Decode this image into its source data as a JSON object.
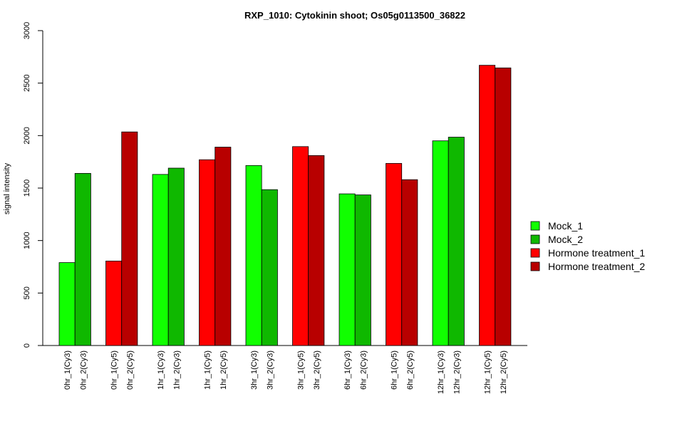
{
  "chart_data": {
    "type": "bar",
    "title": "RXP_1010: Cytokinin shoot; Os05g0113500_36822",
    "xlabel": "",
    "ylabel": "signal intensity",
    "ylim": [
      0,
      3000
    ],
    "yticks": [
      0,
      500,
      1000,
      1500,
      2000,
      2500,
      3000
    ],
    "grid": false,
    "legend_position": "right",
    "groups": [
      {
        "bars": [
          {
            "label": "0hr_1(Cy3)",
            "value": 790,
            "series": 0
          },
          {
            "label": "0hr_2(Cy3)",
            "value": 1640,
            "series": 1
          }
        ]
      },
      {
        "bars": [
          {
            "label": "0hr_1(Cy5)",
            "value": 805,
            "series": 2
          },
          {
            "label": "0hr_2(Cy5)",
            "value": 2035,
            "series": 3
          }
        ]
      },
      {
        "bars": [
          {
            "label": "1hr_1(Cy3)",
            "value": 1630,
            "series": 0
          },
          {
            "label": "1hr_2(Cy3)",
            "value": 1690,
            "series": 1
          }
        ]
      },
      {
        "bars": [
          {
            "label": "1hr_1(Cy5)",
            "value": 1770,
            "series": 2
          },
          {
            "label": "1hr_2(Cy5)",
            "value": 1890,
            "series": 3
          }
        ]
      },
      {
        "bars": [
          {
            "label": "3hr_1(Cy3)",
            "value": 1715,
            "series": 0
          },
          {
            "label": "3hr_2(Cy3)",
            "value": 1485,
            "series": 1
          }
        ]
      },
      {
        "bars": [
          {
            "label": "3hr_1(Cy5)",
            "value": 1895,
            "series": 2
          },
          {
            "label": "3hr_2(Cy5)",
            "value": 1810,
            "series": 3
          }
        ]
      },
      {
        "bars": [
          {
            "label": "6hr_1(Cy3)",
            "value": 1445,
            "series": 0
          },
          {
            "label": "6hr_2(Cy3)",
            "value": 1435,
            "series": 1
          }
        ]
      },
      {
        "bars": [
          {
            "label": "6hr_1(Cy5)",
            "value": 1735,
            "series": 2
          },
          {
            "label": "6hr_2(Cy5)",
            "value": 1580,
            "series": 3
          }
        ]
      },
      {
        "bars": [
          {
            "label": "12hr_1(Cy3)",
            "value": 1950,
            "series": 0
          },
          {
            "label": "12hr_2(Cy3)",
            "value": 1985,
            "series": 1
          }
        ]
      },
      {
        "bars": [
          {
            "label": "12hr_1(Cy5)",
            "value": 2670,
            "series": 2
          },
          {
            "label": "12hr_2(Cy5)",
            "value": 2645,
            "series": 3
          }
        ]
      }
    ],
    "series": [
      {
        "name": "Mock_1",
        "color": "#11ff00"
      },
      {
        "name": "Mock_2",
        "color": "#0fb800"
      },
      {
        "name": "Hormone treatment_1",
        "color": "#ff0000"
      },
      {
        "name": "Hormone treatment_2",
        "color": "#b80000"
      }
    ]
  }
}
